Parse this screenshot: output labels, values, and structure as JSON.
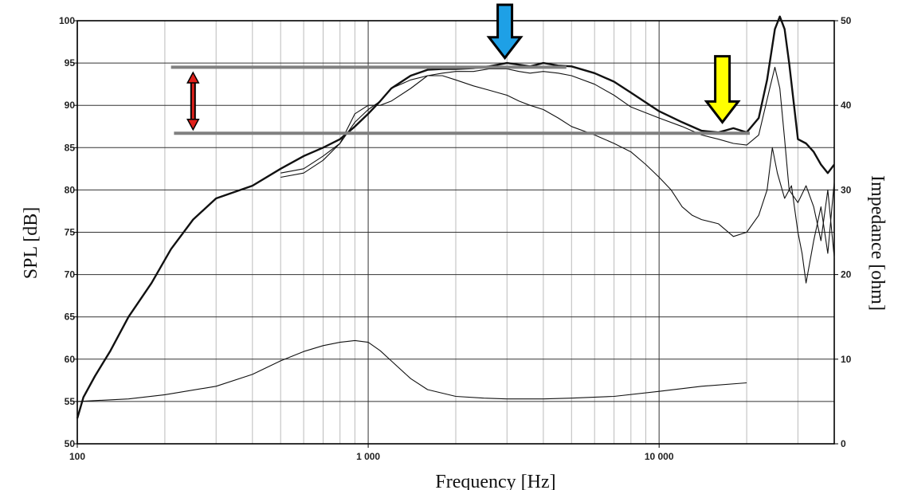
{
  "chart_data": {
    "type": "line",
    "x_scale": "log",
    "grid": true,
    "xlabel": "Frequency [Hz]",
    "ylabel": "SPL [dB]",
    "y2label": "Impedance [ohm]",
    "xlim": [
      100,
      40000
    ],
    "ylim": [
      50,
      100
    ],
    "y2lim": [
      0,
      50
    ],
    "x_tick_labels": [
      {
        "value": 100,
        "label": "100"
      },
      {
        "value": 1000,
        "label": "1 000"
      },
      {
        "value": 10000,
        "label": "10 000"
      }
    ],
    "y_tick_labels": [
      "50",
      "55",
      "60",
      "65",
      "70",
      "75",
      "80",
      "85",
      "90",
      "95",
      "100"
    ],
    "y2_tick_labels": [
      "0",
      "10",
      "20",
      "30",
      "40",
      "50"
    ],
    "series": [
      {
        "axis": "left",
        "weight": "thick",
        "x": [
          100,
          105,
          115,
          130,
          150,
          180,
          210,
          250,
          300,
          400,
          500,
          600,
          700,
          800,
          900,
          1000,
          1100,
          1200,
          1400,
          1600,
          1800,
          2000,
          2300,
          2600,
          3000,
          3300,
          3600,
          4000,
          4500,
          5000,
          6000,
          7000,
          8000,
          10000,
          12000,
          14000,
          16000,
          18000,
          20000,
          22000,
          23500,
          25000,
          26000,
          27000,
          28000,
          30000,
          32000,
          34000,
          36000,
          38000,
          40000
        ],
        "y": [
          53,
          55.5,
          58,
          61,
          65,
          69,
          73,
          76.5,
          79,
          80.5,
          82.5,
          84,
          85,
          86,
          87.5,
          89,
          90.5,
          92,
          93.5,
          94.2,
          94.3,
          94.3,
          94.4,
          94.6,
          95,
          94.8,
          94.6,
          95,
          94.7,
          94.6,
          93.8,
          92.8,
          91.5,
          89.3,
          88,
          87,
          86.8,
          87.3,
          86.8,
          88.5,
          93,
          99,
          100.5,
          99,
          95,
          86,
          85.5,
          84.5,
          83,
          82,
          83
        ]
      },
      {
        "axis": "left",
        "weight": "thin",
        "x": [
          500,
          600,
          700,
          800,
          900,
          1000,
          1100,
          1200,
          1400,
          1600,
          1800,
          2000,
          2300,
          2600,
          3000,
          3300,
          3600,
          4000,
          4500,
          5000,
          6000,
          7000,
          8000,
          10000,
          12000,
          14000,
          16000,
          18000,
          20000,
          22000,
          24000,
          25000,
          26000,
          27000,
          28000,
          30000,
          32000,
          34000,
          36000,
          38000,
          40000
        ],
        "y": [
          82,
          82.5,
          84,
          85.5,
          88,
          89.5,
          90.5,
          92,
          93,
          93.5,
          93.8,
          94,
          94,
          94.3,
          94.3,
          94,
          93.8,
          94,
          93.8,
          93.5,
          92.5,
          91.2,
          89.8,
          88.5,
          87.5,
          86.5,
          86,
          85.5,
          85.3,
          86.5,
          92,
          94.5,
          92,
          86,
          80,
          78.5,
          80.5,
          78,
          74,
          80,
          72
        ]
      },
      {
        "axis": "left",
        "weight": "thin",
        "x": [
          500,
          600,
          700,
          800,
          900,
          1000,
          1100,
          1200,
          1400,
          1600,
          1800,
          2000,
          2300,
          2600,
          3000,
          3300,
          3600,
          4000,
          4500,
          5000,
          6000,
          7000,
          8000,
          9000,
          10000,
          11000,
          12000,
          13000,
          14000,
          16000,
          18000,
          20000,
          22000,
          23500,
          24500,
          25500,
          27000,
          28500,
          30000,
          31000,
          32000,
          34000,
          36000,
          38000,
          40000
        ],
        "y": [
          81.5,
          82,
          83.5,
          85.5,
          89,
          90,
          90,
          90.5,
          92,
          93.5,
          93.5,
          93,
          92.3,
          91.8,
          91.2,
          90.5,
          90,
          89.5,
          88.5,
          87.5,
          86.5,
          85.5,
          84.5,
          83,
          81.5,
          80,
          78,
          77,
          76.5,
          76,
          74.5,
          75,
          77,
          80,
          85,
          82,
          79,
          80.5,
          75,
          72.5,
          69,
          74,
          78,
          72.5,
          81
        ]
      },
      {
        "axis": "right",
        "weight": "thin",
        "x": [
          100,
          150,
          200,
          300,
          400,
          500,
          600,
          700,
          800,
          900,
          1000,
          1100,
          1200,
          1400,
          1600,
          2000,
          2500,
          3000,
          4000,
          5000,
          7000,
          10000,
          14000,
          20000
        ],
        "y": [
          5,
          5.3,
          5.8,
          6.8,
          8.2,
          9.8,
          10.9,
          11.6,
          12,
          12.2,
          12,
          11,
          9.8,
          7.7,
          6.4,
          5.6,
          5.4,
          5.3,
          5.3,
          5.4,
          5.6,
          6.2,
          6.8,
          7.2
        ]
      }
    ],
    "annotations": [
      {
        "type": "reference-line",
        "x_from": 210,
        "x_to": 4800,
        "y": 94.5
      },
      {
        "type": "reference-line",
        "x_from": 215,
        "x_to": 20500,
        "y": 86.7
      },
      {
        "type": "double-arrow",
        "x": 250,
        "y_from": 87.5,
        "y_to": 93.5,
        "color": "#e0211b"
      },
      {
        "type": "down-arrow",
        "x": 2950,
        "y_tip": 95.6,
        "y_top": 102,
        "color": "#1ea0e6"
      },
      {
        "type": "down-arrow",
        "x": 16500,
        "y_tip": 88,
        "y_top": 95.8,
        "color": "#ffff00"
      }
    ]
  }
}
